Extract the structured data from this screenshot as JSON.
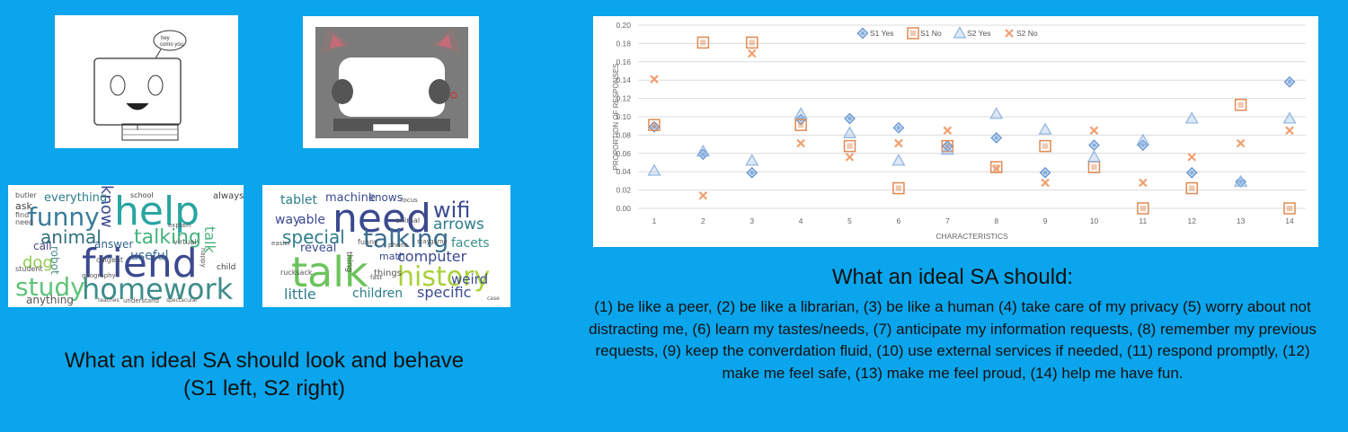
{
  "left": {
    "caption_line1": "What an ideal SA should look and behave",
    "caption_line2": "(S1 left, S2 right)",
    "drawing1_bubble": "hey\ncomo you",
    "wordcloud_s1": [
      {
        "t": "help",
        "c": "#29a5a0"
      },
      {
        "t": "friend",
        "c": "#3b4a8f"
      },
      {
        "t": "homework",
        "c": "#3e8d8c"
      },
      {
        "t": "study",
        "c": "#5fc37a"
      },
      {
        "t": "funny",
        "c": "#3a7c9a"
      },
      {
        "t": "talking",
        "c": "#45b37c"
      },
      {
        "t": "animal",
        "c": "#30707d"
      },
      {
        "t": "know",
        "c": "#3b4a8f"
      },
      {
        "t": "dog",
        "c": "#8fcd52"
      },
      {
        "t": "talk",
        "c": "#46b37a"
      },
      {
        "t": "useful",
        "c": "#3b6b8f"
      },
      {
        "t": "answer",
        "c": "#36638a"
      },
      {
        "t": "robot",
        "c": "#4d8c8a"
      },
      {
        "t": "everything",
        "c": "#2e7d8c"
      },
      {
        "t": "call",
        "c": "#4a3f7e"
      },
      {
        "t": "ask",
        "c": "#444"
      },
      {
        "t": "anything",
        "c": "#555"
      },
      {
        "t": "school",
        "c": "#444"
      },
      {
        "t": "always",
        "c": "#444"
      },
      {
        "t": "child",
        "c": "#444"
      },
      {
        "t": "butler",
        "c": "#555"
      },
      {
        "t": "diligent",
        "c": "#555"
      },
      {
        "t": "find",
        "c": "#555"
      },
      {
        "t": "need",
        "c": "#555"
      },
      {
        "t": "student",
        "c": "#555"
      },
      {
        "t": "geography",
        "c": "#555"
      },
      {
        "t": "virtual",
        "c": "#555"
      },
      {
        "t": "happy",
        "c": "#555"
      },
      {
        "t": "explain",
        "c": "#555"
      },
      {
        "t": "understand",
        "c": "#555"
      },
      {
        "t": "teaches",
        "c": "#555"
      },
      {
        "t": "spectacular",
        "c": "#555"
      }
    ],
    "wordcloud_s2": [
      {
        "t": "need",
        "c": "#3b4a8f"
      },
      {
        "t": "talk",
        "c": "#6cc35d"
      },
      {
        "t": "talking",
        "c": "#3a6e8f"
      },
      {
        "t": "history",
        "c": "#a8d03a"
      },
      {
        "t": "wifi",
        "c": "#3b4a8f"
      },
      {
        "t": "special",
        "c": "#2e7d8c"
      },
      {
        "t": "arrows",
        "c": "#2e7d8c"
      },
      {
        "t": "facets",
        "c": "#3a8f8a"
      },
      {
        "t": "computer",
        "c": "#3b4a8f"
      },
      {
        "t": "weird",
        "c": "#3b4a8f"
      },
      {
        "t": "specific",
        "c": "#3b4a8f"
      },
      {
        "t": "children",
        "c": "#2e7d8c"
      },
      {
        "t": "little",
        "c": "#2e7d8c"
      },
      {
        "t": "machine",
        "c": "#3b4a8f"
      },
      {
        "t": "knows",
        "c": "#3b4a8f"
      },
      {
        "t": "tablet",
        "c": "#2e7d8c"
      },
      {
        "t": "able",
        "c": "#3b4a8f"
      },
      {
        "t": "way",
        "c": "#3b4a8f"
      },
      {
        "t": "reveal",
        "c": "#3b4a8f"
      },
      {
        "t": "math",
        "c": "#3b4a8f"
      },
      {
        "t": "thing",
        "c": "#555"
      },
      {
        "t": "things",
        "c": "#555"
      },
      {
        "t": "funny",
        "c": "#555"
      },
      {
        "t": "animal",
        "c": "#555"
      },
      {
        "t": "phone",
        "c": "#555"
      },
      {
        "t": "rucksack",
        "c": "#555"
      },
      {
        "t": "easier",
        "c": "#555"
      },
      {
        "t": "stay",
        "c": "#555"
      },
      {
        "t": "fast",
        "c": "#555"
      },
      {
        "t": "focus",
        "c": "#555"
      },
      {
        "t": "game",
        "c": "#555"
      },
      {
        "t": "case",
        "c": "#555"
      }
    ]
  },
  "right": {
    "title": "What an ideal SA should:",
    "body": "(1) be like a peer, (2) be like a librarian, (3) be like a human (4) take care of my privacy (5) worry about not distracting me, (6) learn my tastes/needs, (7) anticipate my information requests, (8) remember my previous requests, (9) keep the converdation fluid, (10) use external services if needed, (11) respond promptly, (12) make me feel safe, (13) make me feel proud, (14) help me have fun."
  },
  "colors": {
    "background": "#0aa5ec",
    "s1_yes": "#5b8fd0",
    "s1_no": "#e08a52",
    "s2_yes": "#8fb3e2",
    "s2_no": "#f0a070"
  },
  "chart_data": {
    "type": "scatter",
    "title": "",
    "xlabel": "CHARACTERISTICS",
    "ylabel": "PROPORTION OF RESPONSES",
    "x": [
      1,
      2,
      3,
      4,
      5,
      6,
      7,
      8,
      9,
      10,
      11,
      12,
      13,
      14
    ],
    "ylim": [
      0,
      0.2
    ],
    "yticks": [
      "0.00",
      "0.02",
      "0.04",
      "0.06",
      "0.08",
      "0.10",
      "0.12",
      "0.14",
      "0.16",
      "0.18",
      "0.20"
    ],
    "legend_position": "top",
    "grid": true,
    "series": [
      {
        "name": "S1 Yes",
        "marker": "diamond",
        "values": [
          0.089,
          0.059,
          0.039,
          0.097,
          0.098,
          0.088,
          0.068,
          0.077,
          0.039,
          0.069,
          0.069,
          0.039,
          0.029,
          0.138
        ]
      },
      {
        "name": "S1 No",
        "marker": "square",
        "values": [
          0.091,
          0.181,
          0.181,
          0.091,
          0.068,
          0.022,
          0.068,
          0.045,
          0.068,
          0.045,
          0.0,
          0.022,
          0.113,
          0.0
        ]
      },
      {
        "name": "S2 Yes",
        "marker": "triangle",
        "values": [
          0.041,
          0.062,
          0.052,
          0.103,
          0.082,
          0.052,
          0.064,
          0.103,
          0.086,
          0.056,
          0.074,
          0.098,
          0.029,
          0.098
        ]
      },
      {
        "name": "S2 No",
        "marker": "x",
        "values": [
          0.141,
          0.014,
          0.169,
          0.071,
          0.056,
          0.071,
          0.085,
          0.043,
          0.028,
          0.085,
          0.028,
          0.056,
          0.071,
          0.085
        ]
      }
    ]
  }
}
